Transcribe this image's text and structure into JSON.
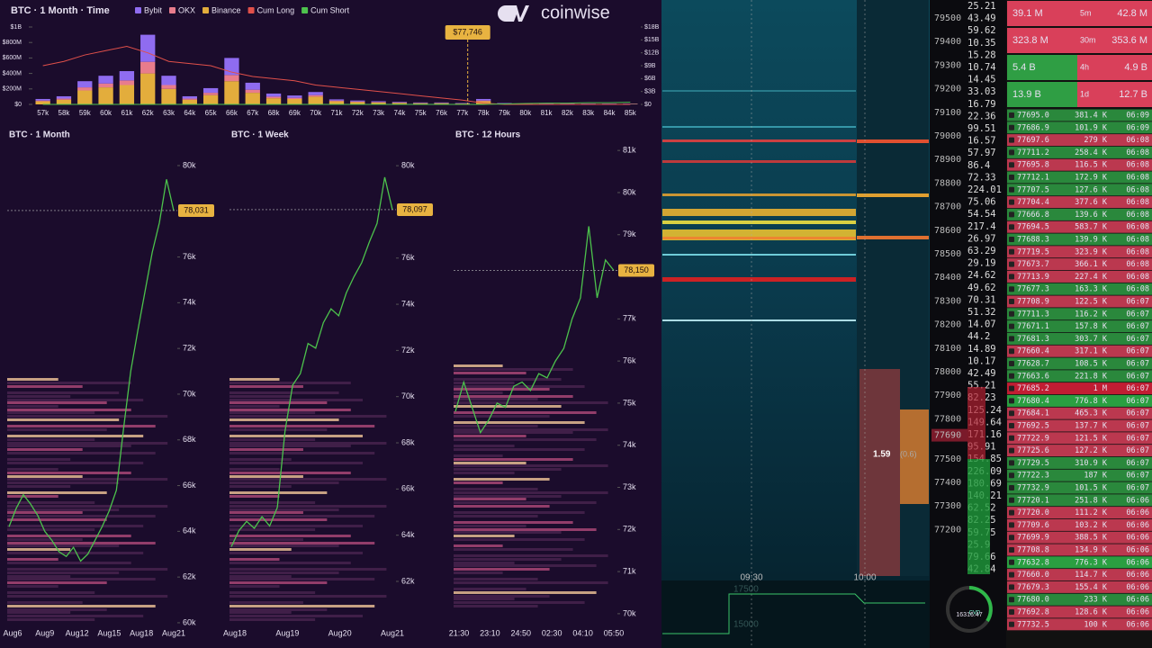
{
  "top_chart": {
    "type": "bar",
    "title": "BTC · 1 Month · Time",
    "logo": "coinwise",
    "categories": [
      "57k",
      "58k",
      "59k",
      "60k",
      "61k",
      "62k",
      "63k",
      "64k",
      "65k",
      "66k",
      "67k",
      "68k",
      "69k",
      "70k",
      "71k",
      "72k",
      "73k",
      "74k",
      "75k",
      "76k",
      "77k",
      "78k",
      "79k",
      "80k",
      "81k",
      "82k",
      "83k",
      "84k",
      "85k"
    ],
    "series": [
      {
        "name": "Bybit",
        "color": "#8f6cf0",
        "values": [
          20,
          30,
          80,
          100,
          120,
          350,
          120,
          30,
          60,
          220,
          90,
          40,
          30,
          40,
          15,
          12,
          10,
          8,
          6,
          6,
          5,
          20,
          5,
          3,
          3,
          3,
          3,
          3,
          3
        ]
      },
      {
        "name": "OKX",
        "color": "#e87c8c",
        "values": [
          10,
          15,
          40,
          50,
          60,
          150,
          50,
          15,
          30,
          80,
          40,
          20,
          15,
          20,
          10,
          8,
          6,
          5,
          4,
          4,
          3,
          10,
          3,
          2,
          2,
          2,
          2,
          2,
          2
        ]
      },
      {
        "name": "Binance",
        "color": "#e3ad3c",
        "values": [
          40,
          60,
          180,
          220,
          250,
          400,
          200,
          60,
          120,
          300,
          150,
          80,
          70,
          100,
          40,
          30,
          25,
          20,
          15,
          15,
          10,
          40,
          10,
          5,
          5,
          5,
          5,
          5,
          5
        ]
      }
    ],
    "lines": [
      {
        "name": "Cum Long",
        "color": "#e0504a",
        "axis": "y2",
        "values": [
          9,
          10,
          11.5,
          12.5,
          13.5,
          12,
          10,
          9.5,
          9,
          7.5,
          6.5,
          6,
          5.5,
          4.5,
          4,
          3.5,
          3,
          2.5,
          2,
          1.5,
          1,
          0.3,
          0,
          0,
          0,
          0,
          0,
          0,
          0
        ]
      },
      {
        "name": "Cum Short",
        "color": "#4ec24e",
        "axis": "y2",
        "values": [
          0,
          0,
          0,
          0,
          0,
          0,
          0,
          0,
          0,
          0,
          0,
          0,
          0,
          0,
          0,
          0,
          0,
          0,
          0,
          0,
          0,
          0,
          0.1,
          0.2,
          0.3,
          0.3,
          0.4,
          0.4,
          0.5
        ]
      }
    ],
    "ylim": [
      0,
      1000
    ],
    "yticks": [
      {
        "value": 0,
        "label": "$0"
      },
      {
        "value": 200,
        "label": "$200M"
      },
      {
        "value": 400,
        "label": "$400M"
      },
      {
        "value": 600,
        "label": "$600M"
      },
      {
        "value": 800,
        "label": "$800M"
      },
      {
        "value": 1000,
        "label": "$1B"
      }
    ],
    "y2lim": [
      0,
      18
    ],
    "y2ticks": [
      {
        "value": 0,
        "label": "$0"
      },
      {
        "value": 3,
        "label": "$3B"
      },
      {
        "value": 6,
        "label": "$6B"
      },
      {
        "value": 9,
        "label": "$9B"
      },
      {
        "value": 12,
        "label": "$12B"
      },
      {
        "value": 15,
        "label": "$15B"
      },
      {
        "value": 18,
        "label": "$18B"
      }
    ],
    "annotation": "$77,746"
  },
  "panels": [
    {
      "type": "line",
      "title": "BTC · 1 Month",
      "ylim": [
        59880,
        80550
      ],
      "yticks": [
        {
          "value": 80000,
          "label": "80k"
        },
        {
          "value": 76000,
          "label": "76k"
        },
        {
          "value": 74000,
          "label": "74k"
        },
        {
          "value": 72000,
          "label": "72k"
        },
        {
          "value": 70000,
          "label": "70k"
        },
        {
          "value": 68000,
          "label": "68k"
        },
        {
          "value": 66000,
          "label": "66k"
        },
        {
          "value": 64000,
          "label": "64k"
        },
        {
          "value": 62000,
          "label": "62k"
        },
        {
          "value": 60000,
          "label": "60k"
        }
      ],
      "x_labels": [
        "Aug6",
        "Aug9",
        "Aug12",
        "Aug15",
        "Aug18",
        "Aug21"
      ],
      "price": 78031,
      "price_label": "78,031",
      "values": [
        64200,
        65000,
        65600,
        65200,
        64700,
        64000,
        63600,
        63100,
        62900,
        63300,
        62700,
        63000,
        63600,
        64200,
        64900,
        65800,
        68500,
        71000,
        72800,
        74500,
        76200,
        77500,
        79400,
        78031
      ]
    },
    {
      "type": "line",
      "title": "BTC · 1 Week",
      "ylim": [
        60090,
        80550
      ],
      "yticks": [
        {
          "value": 80000,
          "label": "80k"
        },
        {
          "value": 76000,
          "label": "76k"
        },
        {
          "value": 74000,
          "label": "74k"
        },
        {
          "value": 72000,
          "label": "72k"
        },
        {
          "value": 70000,
          "label": "70k"
        },
        {
          "value": 68000,
          "label": "68k"
        },
        {
          "value": 66000,
          "label": "66k"
        },
        {
          "value": 64000,
          "label": "64k"
        },
        {
          "value": 62000,
          "label": "62k"
        }
      ],
      "x_labels": [
        "Aug18",
        "Aug19",
        "Aug20",
        "Aug21"
      ],
      "price": 78097,
      "price_label": "78,097",
      "values": [
        63500,
        64200,
        64600,
        64300,
        64800,
        64400,
        65200,
        68500,
        70500,
        71000,
        72300,
        72100,
        73200,
        73800,
        73500,
        74500,
        75200,
        75800,
        76700,
        77500,
        79500,
        78097
      ]
    },
    {
      "type": "line",
      "title": "BTC · 12 Hours",
      "ylim": [
        69720,
        81260
      ],
      "yticks": [
        {
          "value": 81000,
          "label": "81k"
        },
        {
          "value": 80000,
          "label": "80k"
        },
        {
          "value": 79000,
          "label": "79k"
        },
        {
          "value": 77000,
          "label": "77k"
        },
        {
          "value": 76000,
          "label": "76k"
        },
        {
          "value": 75000,
          "label": "75k"
        },
        {
          "value": 74000,
          "label": "74k"
        },
        {
          "value": 73000,
          "label": "73k"
        },
        {
          "value": 72000,
          "label": "72k"
        },
        {
          "value": 71000,
          "label": "71k"
        },
        {
          "value": 70000,
          "label": "70k"
        }
      ],
      "x_labels": [
        "21:30",
        "23:10",
        "24:50",
        "02:30",
        "04:10",
        "05:50"
      ],
      "price": 78150,
      "price_label": "78,150",
      "values": [
        74800,
        75500,
        74900,
        74300,
        74600,
        75000,
        74900,
        75400,
        75500,
        75300,
        75700,
        75600,
        76000,
        76300,
        77000,
        77500,
        79200,
        77500,
        78400,
        78150
      ]
    }
  ],
  "heatmap": {
    "price_axis": [
      "79500",
      "79400",
      "79300",
      "79200",
      "79100",
      "79000",
      "78900",
      "78800",
      "78700",
      "78600",
      "78500",
      "78400",
      "78300",
      "78200",
      "78100",
      "78000",
      "77900",
      "77800",
      "77690",
      "77500",
      "77400",
      "77300",
      "77200"
    ],
    "sizes": [
      "25.21",
      "43.49",
      "59.62",
      "10.35",
      "15.28",
      "10.74",
      "14.45",
      "33.03",
      "16.79",
      "22.36",
      "99.51",
      "16.57",
      "57.97",
      "86.4",
      "72.33",
      "224.01",
      "75.06",
      "54.54",
      "217.4",
      "26.97",
      "63.29",
      "29.19",
      "24.62",
      "49.62",
      "70.31",
      "51.32",
      "14.07",
      "44.2",
      "14.89",
      "10.17",
      "42.49",
      "55.21",
      "82.23",
      "125.24",
      "149.64",
      "171.16",
      "95.91",
      "154.85",
      "226.09",
      "180.69",
      "140.21",
      "62.52",
      "82.25",
      "59.75",
      "25.9",
      "79.66",
      "42.84"
    ],
    "marker": "1.59",
    "marker_sub": "(0.6)",
    "times": [
      "09:30",
      "10:00"
    ],
    "cvd_axis": [
      "17500",
      "15000"
    ],
    "gauge_label": "CVD",
    "gauge_value": "16316.47"
  },
  "stats": [
    {
      "left": "39.1 M",
      "period": "5m",
      "right": "42.8 M",
      "left_color": "#d9405a",
      "right_color": "#d9405a"
    },
    {
      "left": "323.8 M",
      "period": "30m",
      "right": "353.6 M",
      "left_color": "#d9405a",
      "right_color": "#d9405a"
    },
    {
      "left": "5.4 B",
      "period": "4h",
      "right": "4.9 B",
      "left_color": "#2f9e44",
      "right_color": "#d9405a"
    },
    {
      "left": "13.9 B",
      "period": "1d",
      "right": "12.7 B",
      "left_color": "#2f9e44",
      "right_color": "#d9405a"
    }
  ],
  "trades": [
    {
      "price": "77695.0",
      "size": "381.4 K",
      "time": "06:09",
      "color": "#2f9e44"
    },
    {
      "price": "77686.9",
      "size": "101.9 K",
      "time": "06:09",
      "color": "#2f9e44"
    },
    {
      "price": "77697.6",
      "size": "279 K",
      "time": "06:08",
      "color": "#d9405a"
    },
    {
      "price": "77711.2",
      "size": "258.4 K",
      "time": "06:08",
      "color": "#2f9e44"
    },
    {
      "price": "77695.8",
      "size": "116.5 K",
      "time": "06:08",
      "color": "#d9405a"
    },
    {
      "price": "77712.1",
      "size": "172.9 K",
      "time": "06:08",
      "color": "#2f9e44"
    },
    {
      "price": "77707.5",
      "size": "127.6 K",
      "time": "06:08",
      "color": "#2f9e44"
    },
    {
      "price": "77704.4",
      "size": "377.6 K",
      "time": "06:08",
      "color": "#d9405a"
    },
    {
      "price": "77666.8",
      "size": "139.6 K",
      "time": "06:08",
      "color": "#2f9e44"
    },
    {
      "price": "77694.5",
      "size": "583.7 K",
      "time": "06:08",
      "color": "#d9405a"
    },
    {
      "price": "77688.3",
      "size": "139.9 K",
      "time": "06:08",
      "color": "#2f9e44"
    },
    {
      "price": "77719.5",
      "size": "323.9 K",
      "time": "06:08",
      "color": "#d9405a"
    },
    {
      "price": "77673.7",
      "size": "366.1 K",
      "time": "06:08",
      "color": "#d9405a"
    },
    {
      "price": "77713.9",
      "size": "227.4 K",
      "time": "06:08",
      "color": "#d9405a"
    },
    {
      "price": "77677.3",
      "size": "163.3 K",
      "time": "06:08",
      "color": "#2f9e44"
    },
    {
      "price": "77708.9",
      "size": "122.5 K",
      "time": "06:07",
      "color": "#d9405a"
    },
    {
      "price": "77711.3",
      "size": "116.2 K",
      "time": "06:07",
      "color": "#2f9e44"
    },
    {
      "price": "77671.1",
      "size": "157.8 K",
      "time": "06:07",
      "color": "#2f9e44"
    },
    {
      "price": "77681.3",
      "size": "303.7 K",
      "time": "06:07",
      "color": "#2f9e44"
    },
    {
      "price": "77660.4",
      "size": "317.1 K",
      "time": "06:07",
      "color": "#d9405a"
    },
    {
      "price": "77628.7",
      "size": "108.5 K",
      "time": "06:07",
      "color": "#2f9e44"
    },
    {
      "price": "77663.6",
      "size": "221.8 K",
      "time": "06:07",
      "color": "#2f9e44"
    },
    {
      "price": "77685.2",
      "size": "1 M",
      "time": "06:07",
      "color": "#e0203a"
    },
    {
      "price": "77680.4",
      "size": "776.8 K",
      "time": "06:07",
      "color": "#2fb84a"
    },
    {
      "price": "77684.1",
      "size": "465.3 K",
      "time": "06:07",
      "color": "#d9405a"
    },
    {
      "price": "77692.5",
      "size": "137.7 K",
      "time": "06:07",
      "color": "#d9405a"
    },
    {
      "price": "77722.9",
      "size": "121.5 K",
      "time": "06:07",
      "color": "#d9405a"
    },
    {
      "price": "77725.6",
      "size": "127.2 K",
      "time": "06:07",
      "color": "#d9405a"
    },
    {
      "price": "77729.5",
      "size": "310.9 K",
      "time": "06:07",
      "color": "#2f9e44"
    },
    {
      "price": "77722.3",
      "size": "187 K",
      "time": "06:07",
      "color": "#2f9e44"
    },
    {
      "price": "77732.9",
      "size": "101.5 K",
      "time": "06:07",
      "color": "#2f9e44"
    },
    {
      "price": "77720.1",
      "size": "251.8 K",
      "time": "06:06",
      "color": "#2f9e44"
    },
    {
      "price": "77720.0",
      "size": "111.2 K",
      "time": "06:06",
      "color": "#d9405a"
    },
    {
      "price": "77709.6",
      "size": "103.2 K",
      "time": "06:06",
      "color": "#d9405a"
    },
    {
      "price": "77699.9",
      "size": "388.5 K",
      "time": "06:06",
      "color": "#d9405a"
    },
    {
      "price": "77708.8",
      "size": "134.9 K",
      "time": "06:06",
      "color": "#d9405a"
    },
    {
      "price": "77632.8",
      "size": "776.3 K",
      "time": "06:06",
      "color": "#2fb84a"
    },
    {
      "price": "77660.0",
      "size": "114.7 K",
      "time": "06:06",
      "color": "#d9405a"
    },
    {
      "price": "77679.3",
      "size": "155.4 K",
      "time": "06:06",
      "color": "#d9405a"
    },
    {
      "price": "77680.0",
      "size": "233 K",
      "time": "06:06",
      "color": "#2f9e44"
    },
    {
      "price": "77692.8",
      "size": "128.6 K",
      "time": "06:06",
      "color": "#d9405a"
    },
    {
      "price": "77732.5",
      "size": "100 K",
      "time": "06:06",
      "color": "#d9405a"
    }
  ]
}
